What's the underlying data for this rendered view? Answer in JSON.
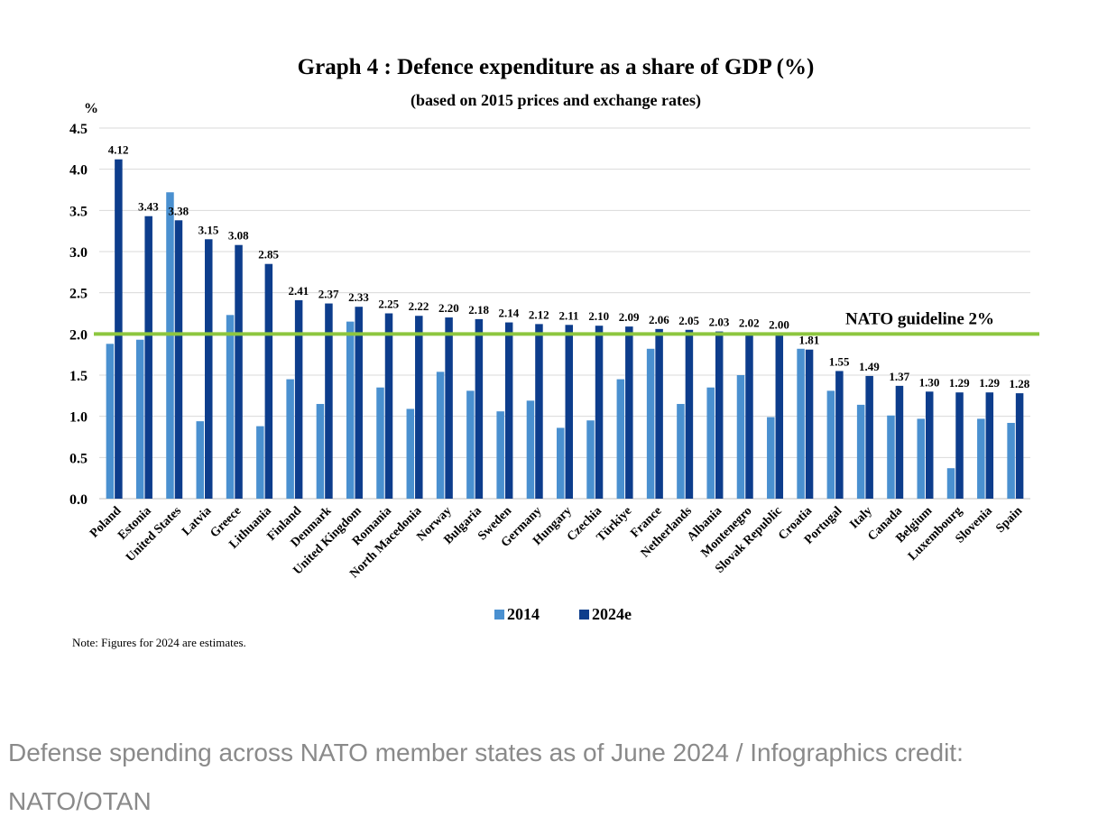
{
  "chart_data": {
    "type": "bar",
    "title": "Graph 4 : Defence expenditure as a share of GDP (%)",
    "subtitle": "(based on 2015 prices and exchange rates)",
    "ylabel": "%",
    "ylim": [
      0,
      4.5
    ],
    "yticks": [
      "0.0",
      "0.5",
      "1.0",
      "1.5",
      "2.0",
      "2.5",
      "3.0",
      "3.5",
      "4.0",
      "4.5"
    ],
    "grid": true,
    "legend_position": "bottom",
    "categories": [
      "Poland",
      "Estonia",
      "United States",
      "Latvia",
      "Greece",
      "Lithuania",
      "Finland",
      "Denmark",
      "United Kingdom",
      "Romania",
      "North Macedonia",
      "Norway",
      "Bulgaria",
      "Sweden",
      "Germany",
      "Hungary",
      "Czechia",
      "Türkiye",
      "France",
      "Netherlands",
      "Albania",
      "Montenegro",
      "Slovak Republic",
      "Croatia",
      "Portugal",
      "Italy",
      "Canada",
      "Belgium",
      "Luxembourg",
      "Slovenia",
      "Spain"
    ],
    "series": [
      {
        "name": "2014",
        "color": "#4a90d0",
        "values": [
          1.88,
          1.93,
          3.72,
          0.94,
          2.23,
          0.88,
          1.45,
          1.15,
          2.15,
          1.35,
          1.09,
          1.54,
          1.31,
          1.06,
          1.19,
          0.86,
          0.95,
          1.45,
          1.82,
          1.15,
          1.35,
          1.5,
          0.99,
          1.82,
          1.31,
          1.14,
          1.01,
          0.97,
          0.37,
          0.97,
          0.92
        ],
        "data_labels": []
      },
      {
        "name": "2024e",
        "color": "#0d3d8c",
        "values": [
          4.12,
          3.43,
          3.38,
          3.15,
          3.08,
          2.85,
          2.41,
          2.37,
          2.33,
          2.25,
          2.22,
          2.2,
          2.18,
          2.14,
          2.12,
          2.11,
          2.1,
          2.09,
          2.06,
          2.05,
          2.03,
          2.02,
          2.0,
          1.81,
          1.55,
          1.49,
          1.37,
          1.3,
          1.29,
          1.29,
          1.28
        ],
        "data_labels": [
          "4.12",
          "3.43",
          "3.38",
          "3.15",
          "3.08",
          "2.85",
          "2.41",
          "2.37",
          "2.33",
          "2.25",
          "2.22",
          "2.20",
          "2.18",
          "2.14",
          "2.12",
          "2.11",
          "2.10",
          "2.09",
          "2.06",
          "2.05",
          "2.03",
          "2.02",
          "2.00",
          "1.81",
          "1.55",
          "1.49",
          "1.37",
          "1.30",
          "1.29",
          "1.29",
          "1.28"
        ]
      }
    ],
    "reference_line": {
      "value": 2.0,
      "label": "NATO guideline 2%",
      "color": "#8dc63f"
    },
    "note": "Note: Figures for 2024 are estimates."
  },
  "caption": "Defense spending across NATO member states as of June 2024 / Infographics credit: NATO/OTAN"
}
